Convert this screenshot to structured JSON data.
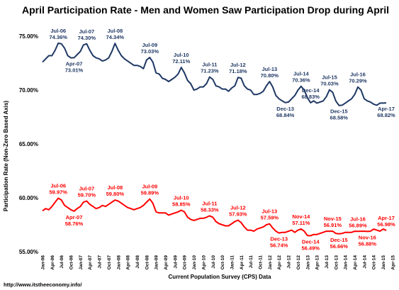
{
  "chart_data": {
    "type": "line",
    "title": "April Participation Rate - Men and Women Saw Participation Drop during April",
    "xlabel": "Current Population Survey (CPS) Data",
    "ylabel": "Participation Rate (Non-Zero Based Axis)",
    "ylim": [
      55,
      76
    ],
    "yticks": [
      55,
      60,
      65,
      70,
      75
    ],
    "ytick_labels": [
      "55.00%",
      "60.00%",
      "65.00%",
      "70.00%",
      "75.00%"
    ],
    "x_tick_labels": [
      "Jan-06",
      "Apr-06",
      "Jul-06",
      "Oct-06",
      "Jan-07",
      "Apr-07",
      "Jul-07",
      "Oct-07",
      "Jan-08",
      "Apr-08",
      "Jul-08",
      "Oct-08",
      "Jan-09",
      "Apr-09",
      "Jul-09",
      "Oct-09",
      "Jan-10",
      "Apr-10",
      "Jul-10",
      "Oct-10",
      "Jan-11",
      "Apr-11",
      "Jul-11",
      "Oct-11",
      "Jan-12",
      "Apr-12",
      "Jul-12",
      "Oct-12",
      "Jan-13",
      "Apr-13",
      "Jul-13",
      "Oct-13",
      "Jan-14",
      "Apr-14",
      "Jul-14",
      "Oct-14",
      "Jan-15",
      "Apr-15",
      "Jul-15",
      "Oct-15",
      "Jan-16",
      "Apr-16",
      "Jul-16",
      "Oct-16",
      "Jan-17",
      "Apr-17"
    ],
    "grid": false,
    "source_note": "http://www.itstheeconomy.info/",
    "series": [
      {
        "color": "#1f3864",
        "values": [
          72.6,
          72.9,
          73.2,
          73.2,
          73.7,
          74.36,
          74.3,
          73.9,
          73.2,
          73.0,
          73.01,
          73.3,
          73.6,
          74.2,
          74.3,
          73.7,
          73.2,
          73.0,
          72.9,
          72.7,
          72.8,
          73.0,
          73.6,
          74.34,
          73.7,
          73.2,
          72.9,
          72.7,
          72.5,
          72.3,
          72.3,
          72.2,
          72.0,
          72.8,
          73.03,
          72.6,
          71.6,
          71.5,
          71.1,
          71.0,
          70.8,
          71.0,
          71.2,
          71.5,
          72.11,
          71.6,
          70.9,
          70.6,
          70.0,
          70.1,
          70.3,
          70.3,
          70.6,
          71.23,
          71.0,
          70.4,
          70.3,
          70.1,
          70.1,
          69.9,
          70.2,
          70.4,
          71.18,
          71.1,
          70.4,
          70.1,
          70.0,
          69.6,
          69.6,
          69.7,
          69.9,
          70.4,
          70.8,
          70.3,
          69.5,
          69.2,
          69.0,
          68.84,
          68.9,
          69.2,
          69.5,
          70.0,
          70.36,
          70.0,
          69.3,
          68.83,
          69.0,
          68.8,
          68.9,
          69.0,
          69.4,
          70.03,
          69.8,
          69.0,
          68.58,
          68.6,
          68.8,
          69.0,
          69.2,
          69.6,
          70.29,
          70.0,
          69.2,
          69.0,
          68.9,
          68.7,
          68.6,
          68.8,
          68.8,
          68.82
        ]
      },
      {
        "color": "#ff0000",
        "values": [
          58.8,
          59.0,
          58.9,
          59.2,
          59.6,
          59.97,
          59.8,
          59.3,
          59.1,
          58.9,
          58.76,
          59.0,
          59.2,
          59.6,
          59.7,
          59.4,
          59.2,
          59.0,
          59.1,
          59.3,
          59.2,
          59.4,
          59.6,
          59.8,
          59.7,
          59.5,
          59.3,
          59.1,
          59.0,
          58.9,
          59.0,
          59.1,
          59.3,
          59.6,
          59.89,
          59.5,
          58.7,
          58.6,
          58.6,
          58.6,
          58.4,
          58.5,
          58.6,
          58.7,
          58.85,
          58.7,
          58.2,
          58.0,
          57.9,
          58.0,
          58.1,
          58.1,
          58.2,
          58.33,
          58.2,
          57.8,
          57.6,
          57.5,
          57.4,
          57.4,
          57.6,
          57.8,
          57.93,
          57.7,
          57.3,
          57.0,
          57.0,
          56.9,
          57.1,
          57.2,
          57.3,
          57.5,
          57.59,
          57.2,
          56.9,
          56.74,
          56.8,
          56.8,
          56.9,
          57.0,
          56.8,
          57.0,
          57.11,
          56.9,
          56.5,
          56.49,
          56.6,
          56.6,
          56.7,
          56.8,
          56.9,
          56.9,
          56.91,
          56.7,
          56.66,
          56.7,
          56.8,
          56.8,
          56.8,
          56.9,
          56.89,
          56.9,
          56.9,
          56.88,
          56.9,
          57.1,
          57.0,
          56.9,
          57.1,
          56.98
        ]
      }
    ],
    "annotations": [
      {
        "series": 0,
        "index": 5,
        "label": "Jul-06",
        "value": "74.36%",
        "pos": "above"
      },
      {
        "series": 0,
        "index": 10,
        "label": "Apr-07",
        "value": "73.01%",
        "pos": "below"
      },
      {
        "series": 0,
        "index": 14,
        "label": "Jul-07",
        "value": "74.30%",
        "pos": "above"
      },
      {
        "series": 0,
        "index": 23,
        "label": "Jul-08",
        "value": "74.34%",
        "pos": "above"
      },
      {
        "series": 0,
        "index": 34,
        "label": "Jul-09",
        "value": "73.03%",
        "pos": "above"
      },
      {
        "series": 0,
        "index": 44,
        "label": "Jul-10",
        "value": "72.11%",
        "pos": "above"
      },
      {
        "series": 0,
        "index": 53,
        "label": "Jul-11",
        "value": "71.23%",
        "pos": "above"
      },
      {
        "series": 0,
        "index": 62,
        "label": "Jul-12",
        "value": "71.18%",
        "pos": "above"
      },
      {
        "series": 0,
        "index": 72,
        "label": "Jul-13",
        "value": "70.80%",
        "pos": "above"
      },
      {
        "series": 0,
        "index": 77,
        "label": "Dec-13",
        "value": "68.84%",
        "pos": "below"
      },
      {
        "series": 0,
        "index": 82,
        "label": "Jul-14",
        "value": "70.36%",
        "pos": "above"
      },
      {
        "series": 0,
        "index": 85,
        "label": "Dec-14",
        "value": "68.83%",
        "pos": "above"
      },
      {
        "series": 0,
        "index": 91,
        "label": "Jul-15",
        "value": "70.03%",
        "pos": "above"
      },
      {
        "series": 0,
        "index": 94,
        "label": "Dec-15",
        "value": "68.58%",
        "pos": "below"
      },
      {
        "series": 0,
        "index": 100,
        "label": "Jul-16",
        "value": "70.29%",
        "pos": "above"
      },
      {
        "series": 0,
        "index": 109,
        "label": "Apr-17",
        "value": "68.82%",
        "pos": "below"
      },
      {
        "series": 1,
        "index": 5,
        "label": "Jul-06",
        "value": "59.97%",
        "pos": "above"
      },
      {
        "series": 1,
        "index": 10,
        "label": "Apr-07",
        "value": "58.76%",
        "pos": "below"
      },
      {
        "series": 1,
        "index": 14,
        "label": "Jul-07",
        "value": "59.70%",
        "pos": "above"
      },
      {
        "series": 1,
        "index": 23,
        "label": "Jul-08",
        "value": "59.80%",
        "pos": "above"
      },
      {
        "series": 1,
        "index": 34,
        "label": "Jul-09",
        "value": "59.89%",
        "pos": "above"
      },
      {
        "series": 1,
        "index": 44,
        "label": "Jul-10",
        "value": "58.85%",
        "pos": "above"
      },
      {
        "series": 1,
        "index": 53,
        "label": "Jul-11",
        "value": "58.33%",
        "pos": "above"
      },
      {
        "series": 1,
        "index": 62,
        "label": "Jul-12",
        "value": "57.93%",
        "pos": "above"
      },
      {
        "series": 1,
        "index": 72,
        "label": "Jul-13",
        "value": "57.59%",
        "pos": "above"
      },
      {
        "series": 1,
        "index": 75,
        "label": "Dec-13",
        "value": "56.74%",
        "pos": "below"
      },
      {
        "series": 1,
        "index": 82,
        "label": "Nov-14",
        "value": "57.11%",
        "pos": "above"
      },
      {
        "series": 1,
        "index": 85,
        "label": "Dec-14",
        "value": "56.49%",
        "pos": "below"
      },
      {
        "series": 1,
        "index": 92,
        "label": "Nov-15",
        "value": "56.91%",
        "pos": "above"
      },
      {
        "series": 1,
        "index": 94,
        "label": "Dec-15",
        "value": "56.66%",
        "pos": "below"
      },
      {
        "series": 1,
        "index": 100,
        "label": "Jul-16",
        "value": "56.89%",
        "pos": "above"
      },
      {
        "series": 1,
        "index": 103,
        "label": "Nov-16",
        "value": "56.88%",
        "pos": "below"
      },
      {
        "series": 1,
        "index": 109,
        "label": "Apr-17",
        "value": "56.98%",
        "pos": "above"
      }
    ]
  }
}
